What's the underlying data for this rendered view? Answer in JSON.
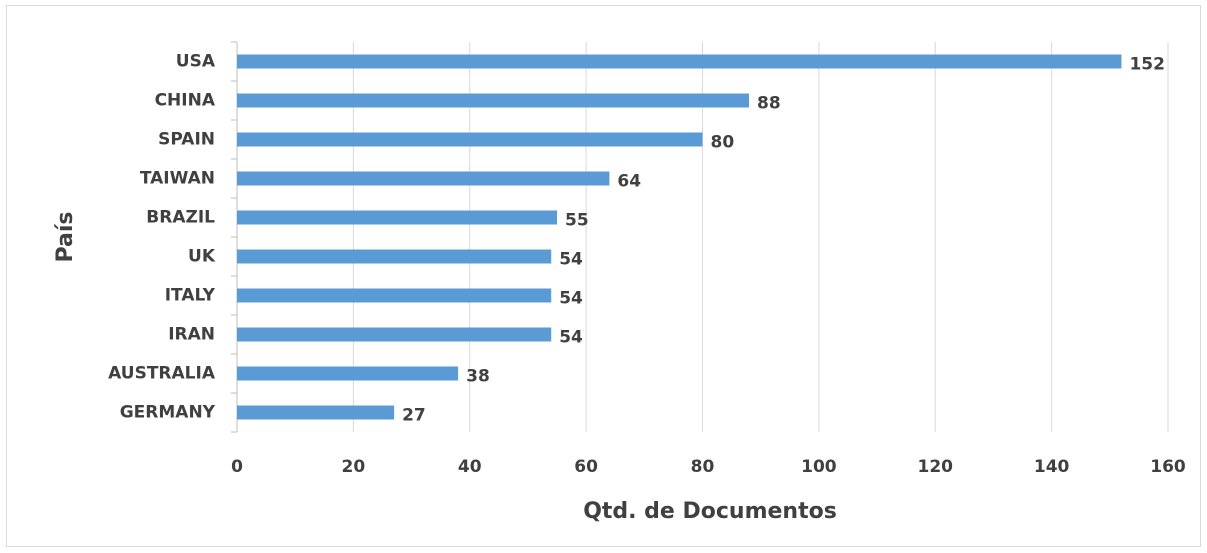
{
  "chart_data": {
    "type": "bar",
    "orientation": "horizontal",
    "x_label": "Qtd. de Documentos",
    "y_label": "País",
    "categories": [
      "USA",
      "CHINA",
      "SPAIN",
      "TAIWAN",
      "BRAZIL",
      "UK",
      "ITALY",
      "IRAN",
      "AUSTRALIA",
      "GERMANY"
    ],
    "values": [
      152,
      88,
      80,
      64,
      55,
      54,
      54,
      54,
      38,
      27
    ],
    "color": "#5b9bd5",
    "xlim": [
      0,
      160
    ],
    "xticks": [
      0,
      20,
      40,
      60,
      80,
      100,
      120,
      140,
      160
    ],
    "grid": true
  }
}
